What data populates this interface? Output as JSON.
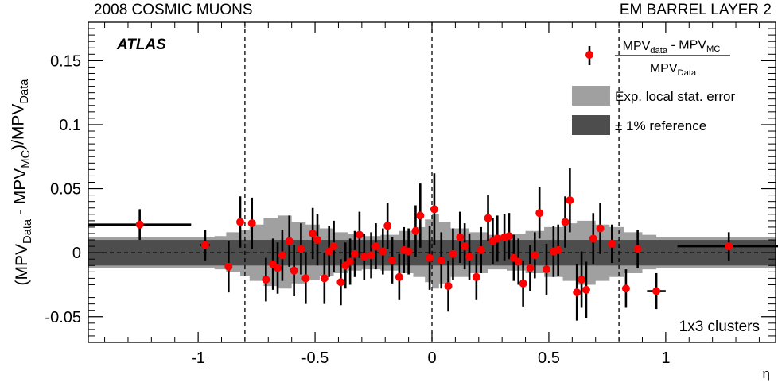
{
  "header": {
    "left": "2008 COSMIC MUONS",
    "right": "EM BARREL LAYER 2"
  },
  "chart_data": {
    "type": "scatter",
    "title": "",
    "experiment": "ATLAS",
    "corner_label": "1x3 clusters",
    "xlabel": "η",
    "ylabel": {
      "parts": [
        [
          "(MPV",
          ""
        ],
        [
          "Data",
          "sub"
        ],
        [
          " - MPV",
          ""
        ],
        [
          "MC",
          "sub"
        ],
        [
          ")/MPV",
          ""
        ],
        [
          "Data",
          "sub"
        ]
      ]
    },
    "xlim": [
      -1.47,
      1.47
    ],
    "ylim": [
      -0.07,
      0.18
    ],
    "x_ticks": [
      -1,
      -0.5,
      0,
      0.5,
      1
    ],
    "x_tick_labels": [
      "-1",
      "-0.5",
      "0",
      "0.5",
      "1"
    ],
    "y_ticks": [
      -0.05,
      0,
      0.05,
      0.1,
      0.15
    ],
    "y_tick_labels": [
      "-0.05",
      "0",
      "0.05",
      "0.1",
      "0.15"
    ],
    "grid": false,
    "vertical_dashed_lines": [
      -0.8,
      0,
      0.8
    ],
    "horizontal_dashed_lines": [
      0
    ],
    "legend": {
      "position": "top-right",
      "entries": [
        {
          "marker": "point",
          "formula": {
            "numerator": [
              [
                "MPV",
                ""
              ],
              [
                "data",
                "sub"
              ],
              [
                " - MPV",
                ""
              ],
              [
                "MC",
                "sub"
              ]
            ],
            "denominator": [
              [
                "MPV",
                ""
              ],
              [
                "Data",
                "sub"
              ]
            ]
          }
        },
        {
          "marker": "box",
          "color": "#a0a0a0",
          "label": "Exp. local stat. error"
        },
        {
          "marker": "box",
          "color": "#4d4d4d",
          "label": "± 1% reference"
        }
      ]
    },
    "colors": {
      "points": "#ff0000",
      "error_bars": "#000000",
      "stat_band": "#a0a0a0",
      "ref_band": "#4d4d4d"
    },
    "reference_band": {
      "lower": -0.01,
      "upper": 0.01
    },
    "stat_error_band": [
      {
        "x": -1.47,
        "lo": -0.012,
        "hi": 0.012
      },
      {
        "x": -0.95,
        "lo": -0.012,
        "hi": 0.012
      },
      {
        "x": -0.93,
        "lo": -0.013,
        "hi": 0.013
      },
      {
        "x": -0.88,
        "lo": -0.015,
        "hi": 0.016
      },
      {
        "x": -0.82,
        "lo": -0.018,
        "hi": 0.018
      },
      {
        "x": -0.78,
        "lo": -0.022,
        "hi": 0.022
      },
      {
        "x": -0.72,
        "lo": -0.026,
        "hi": 0.027
      },
      {
        "x": -0.66,
        "lo": -0.028,
        "hi": 0.029
      },
      {
        "x": -0.6,
        "lo": -0.024,
        "hi": 0.024
      },
      {
        "x": -0.54,
        "lo": -0.021,
        "hi": 0.022
      },
      {
        "x": -0.48,
        "lo": -0.018,
        "hi": 0.019
      },
      {
        "x": -0.42,
        "lo": -0.016,
        "hi": 0.016
      },
      {
        "x": -0.36,
        "lo": -0.014,
        "hi": 0.015
      },
      {
        "x": -0.3,
        "lo": -0.013,
        "hi": 0.013
      },
      {
        "x": -0.22,
        "lo": -0.014,
        "hi": 0.014
      },
      {
        "x": -0.14,
        "lo": -0.016,
        "hi": 0.017
      },
      {
        "x": -0.08,
        "lo": -0.019,
        "hi": 0.02
      },
      {
        "x": -0.03,
        "lo": -0.023,
        "hi": 0.026
      },
      {
        "x": 0.0,
        "lo": -0.028,
        "hi": 0.03
      },
      {
        "x": 0.03,
        "lo": -0.024,
        "hi": 0.024
      },
      {
        "x": 0.08,
        "lo": -0.019,
        "hi": 0.019
      },
      {
        "x": 0.16,
        "lo": -0.016,
        "hi": 0.016
      },
      {
        "x": 0.24,
        "lo": -0.013,
        "hi": 0.014
      },
      {
        "x": 0.32,
        "lo": -0.014,
        "hi": 0.015
      },
      {
        "x": 0.4,
        "lo": -0.016,
        "hi": 0.017
      },
      {
        "x": 0.48,
        "lo": -0.019,
        "hi": 0.02
      },
      {
        "x": 0.56,
        "lo": -0.022,
        "hi": 0.023
      },
      {
        "x": 0.62,
        "lo": -0.025,
        "hi": 0.025
      },
      {
        "x": 0.7,
        "lo": -0.022,
        "hi": 0.022
      },
      {
        "x": 0.76,
        "lo": -0.019,
        "hi": 0.02
      },
      {
        "x": 0.82,
        "lo": -0.016,
        "hi": 0.016
      },
      {
        "x": 0.9,
        "lo": -0.013,
        "hi": 0.014
      },
      {
        "x": 0.96,
        "lo": -0.012,
        "hi": 0.012
      },
      {
        "x": 1.47,
        "lo": -0.012,
        "hi": 0.012
      }
    ],
    "points": [
      {
        "x": -1.25,
        "y": 0.022,
        "err": 0.012,
        "xerr": 0.22
      },
      {
        "x": -0.97,
        "y": 0.006,
        "err": 0.012,
        "xerr": 0.02
      },
      {
        "x": -0.87,
        "y": -0.011,
        "err": 0.02
      },
      {
        "x": -0.82,
        "y": 0.024,
        "err": 0.02
      },
      {
        "x": -0.77,
        "y": 0.023,
        "err": 0.02
      },
      {
        "x": -0.71,
        "y": -0.021,
        "err": 0.017
      },
      {
        "x": -0.68,
        "y": -0.009,
        "err": 0.02
      },
      {
        "x": -0.66,
        "y": -0.012,
        "err": 0.02
      },
      {
        "x": -0.64,
        "y": -0.002,
        "err": 0.02
      },
      {
        "x": -0.61,
        "y": 0.009,
        "err": 0.02
      },
      {
        "x": -0.59,
        "y": -0.014,
        "err": 0.02
      },
      {
        "x": -0.56,
        "y": 0.003,
        "err": 0.02
      },
      {
        "x": -0.54,
        "y": -0.02,
        "err": 0.02
      },
      {
        "x": -0.51,
        "y": 0.015,
        "err": 0.02
      },
      {
        "x": -0.49,
        "y": 0.01,
        "err": 0.02
      },
      {
        "x": -0.46,
        "y": -0.02,
        "err": 0.02
      },
      {
        "x": -0.44,
        "y": 0.001,
        "err": 0.02
      },
      {
        "x": -0.42,
        "y": 0.005,
        "err": 0.02
      },
      {
        "x": -0.39,
        "y": -0.023,
        "err": 0.018
      },
      {
        "x": -0.37,
        "y": -0.01,
        "err": 0.018
      },
      {
        "x": -0.35,
        "y": -0.007,
        "err": 0.018
      },
      {
        "x": -0.33,
        "y": -0.001,
        "err": 0.018
      },
      {
        "x": -0.31,
        "y": 0.014,
        "err": 0.018
      },
      {
        "x": -0.29,
        "y": -0.003,
        "err": 0.018
      },
      {
        "x": -0.26,
        "y": -0.002,
        "err": 0.018
      },
      {
        "x": -0.24,
        "y": 0.005,
        "err": 0.018
      },
      {
        "x": -0.21,
        "y": 0.001,
        "err": 0.018
      },
      {
        "x": -0.19,
        "y": 0.021,
        "err": 0.018
      },
      {
        "x": -0.17,
        "y": -0.006,
        "err": 0.018
      },
      {
        "x": -0.14,
        "y": -0.019,
        "err": 0.018
      },
      {
        "x": -0.12,
        "y": 0.002,
        "err": 0.018
      },
      {
        "x": -0.1,
        "y": 0.001,
        "err": 0.018
      },
      {
        "x": -0.07,
        "y": 0.017,
        "err": 0.02
      },
      {
        "x": -0.05,
        "y": 0.029,
        "err": 0.025
      },
      {
        "x": -0.01,
        "y": -0.004,
        "err": 0.025
      },
      {
        "x": 0.01,
        "y": 0.034,
        "err": 0.028
      },
      {
        "x": 0.04,
        "y": -0.006,
        "err": 0.022
      },
      {
        "x": 0.07,
        "y": -0.026,
        "err": 0.02
      },
      {
        "x": 0.09,
        "y": -0.001,
        "err": 0.02
      },
      {
        "x": 0.12,
        "y": 0.012,
        "err": 0.02
      },
      {
        "x": 0.14,
        "y": 0.005,
        "err": 0.018
      },
      {
        "x": 0.16,
        "y": -0.003,
        "err": 0.018
      },
      {
        "x": 0.19,
        "y": -0.019,
        "err": 0.018
      },
      {
        "x": 0.21,
        "y": 0.002,
        "err": 0.018
      },
      {
        "x": 0.24,
        "y": 0.027,
        "err": 0.018
      },
      {
        "x": 0.26,
        "y": 0.009,
        "err": 0.018
      },
      {
        "x": 0.28,
        "y": 0.011,
        "err": 0.018
      },
      {
        "x": 0.31,
        "y": 0.012,
        "err": 0.018
      },
      {
        "x": 0.33,
        "y": 0.013,
        "err": 0.018
      },
      {
        "x": 0.35,
        "y": -0.004,
        "err": 0.018
      },
      {
        "x": 0.37,
        "y": -0.007,
        "err": 0.018
      },
      {
        "x": 0.39,
        "y": -0.024,
        "err": 0.018
      },
      {
        "x": 0.42,
        "y": -0.012,
        "err": 0.018
      },
      {
        "x": 0.44,
        "y": -0.002,
        "err": 0.018
      },
      {
        "x": 0.46,
        "y": 0.031,
        "err": 0.02
      },
      {
        "x": 0.49,
        "y": -0.013,
        "err": 0.02
      },
      {
        "x": 0.52,
        "y": 0.001,
        "err": 0.02
      },
      {
        "x": 0.54,
        "y": 0.002,
        "err": 0.02
      },
      {
        "x": 0.57,
        "y": 0.024,
        "err": 0.02
      },
      {
        "x": 0.59,
        "y": 0.041,
        "err": 0.025
      },
      {
        "x": 0.62,
        "y": -0.031,
        "err": 0.022
      },
      {
        "x": 0.64,
        "y": -0.021,
        "err": 0.022
      },
      {
        "x": 0.66,
        "y": -0.029,
        "err": 0.022
      },
      {
        "x": 0.69,
        "y": 0.011,
        "err": 0.02
      },
      {
        "x": 0.72,
        "y": 0.019,
        "err": 0.02
      },
      {
        "x": 0.77,
        "y": 0.007,
        "err": 0.015
      },
      {
        "x": 0.83,
        "y": -0.028,
        "err": 0.015
      },
      {
        "x": 0.88,
        "y": 0.003,
        "err": 0.015
      },
      {
        "x": 0.96,
        "y": -0.03,
        "err": 0.014,
        "xerr": 0.04
      },
      {
        "x": 1.27,
        "y": 0.005,
        "err": 0.011,
        "xerr": 0.22
      }
    ]
  }
}
